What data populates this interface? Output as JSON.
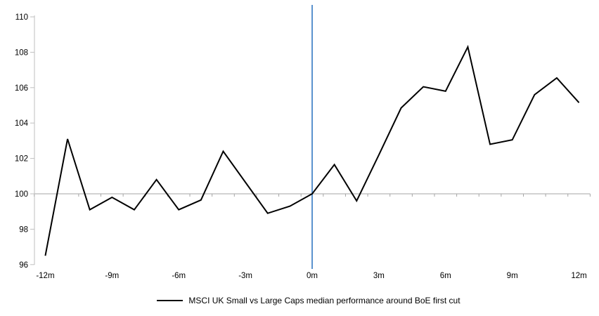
{
  "chart_data": {
    "type": "line",
    "x": [
      -12,
      -11,
      -10,
      -9,
      -8,
      -7,
      -6,
      -5,
      -4,
      -3,
      -2,
      -1,
      0,
      1,
      2,
      3,
      4,
      5,
      6,
      7,
      8,
      9,
      10,
      11,
      12
    ],
    "series": [
      {
        "name": "MSCI UK Small vs Large Caps median performance around BoE first cut",
        "color": "#000000",
        "values": [
          96.5,
          103.1,
          99.1,
          99.8,
          99.1,
          100.8,
          99.1,
          99.65,
          102.4,
          100.65,
          98.9,
          99.3,
          100.0,
          101.65,
          99.6,
          102.2,
          104.85,
          106.05,
          105.8,
          108.3,
          102.8,
          103.05,
          105.6,
          106.55,
          105.15
        ]
      }
    ],
    "title": "",
    "xlabel": "",
    "ylabel": "",
    "ylim": [
      96,
      110
    ],
    "ytick_step": 2,
    "ytick_labels": [
      "96",
      "98",
      "100",
      "102",
      "104",
      "106",
      "108",
      "110"
    ],
    "xtick_labels": [
      "-12m",
      "-9m",
      "-6m",
      "-3m",
      "0m",
      "3m",
      "6m",
      "9m",
      "12m"
    ],
    "xtick_positions": [
      -12,
      -9,
      -6,
      -3,
      0,
      3,
      6,
      9,
      12
    ],
    "x_axis_cross_value": 100,
    "event_line_x": 0,
    "grid": "off",
    "legend_position": "bottom",
    "colors": {
      "series_line": "#000000",
      "event_line": "#5b93ce",
      "x_axis_line": "#a6a6a6",
      "y_axis_line": "#bfbfbf",
      "tick_color": "#a6a6a6"
    }
  }
}
